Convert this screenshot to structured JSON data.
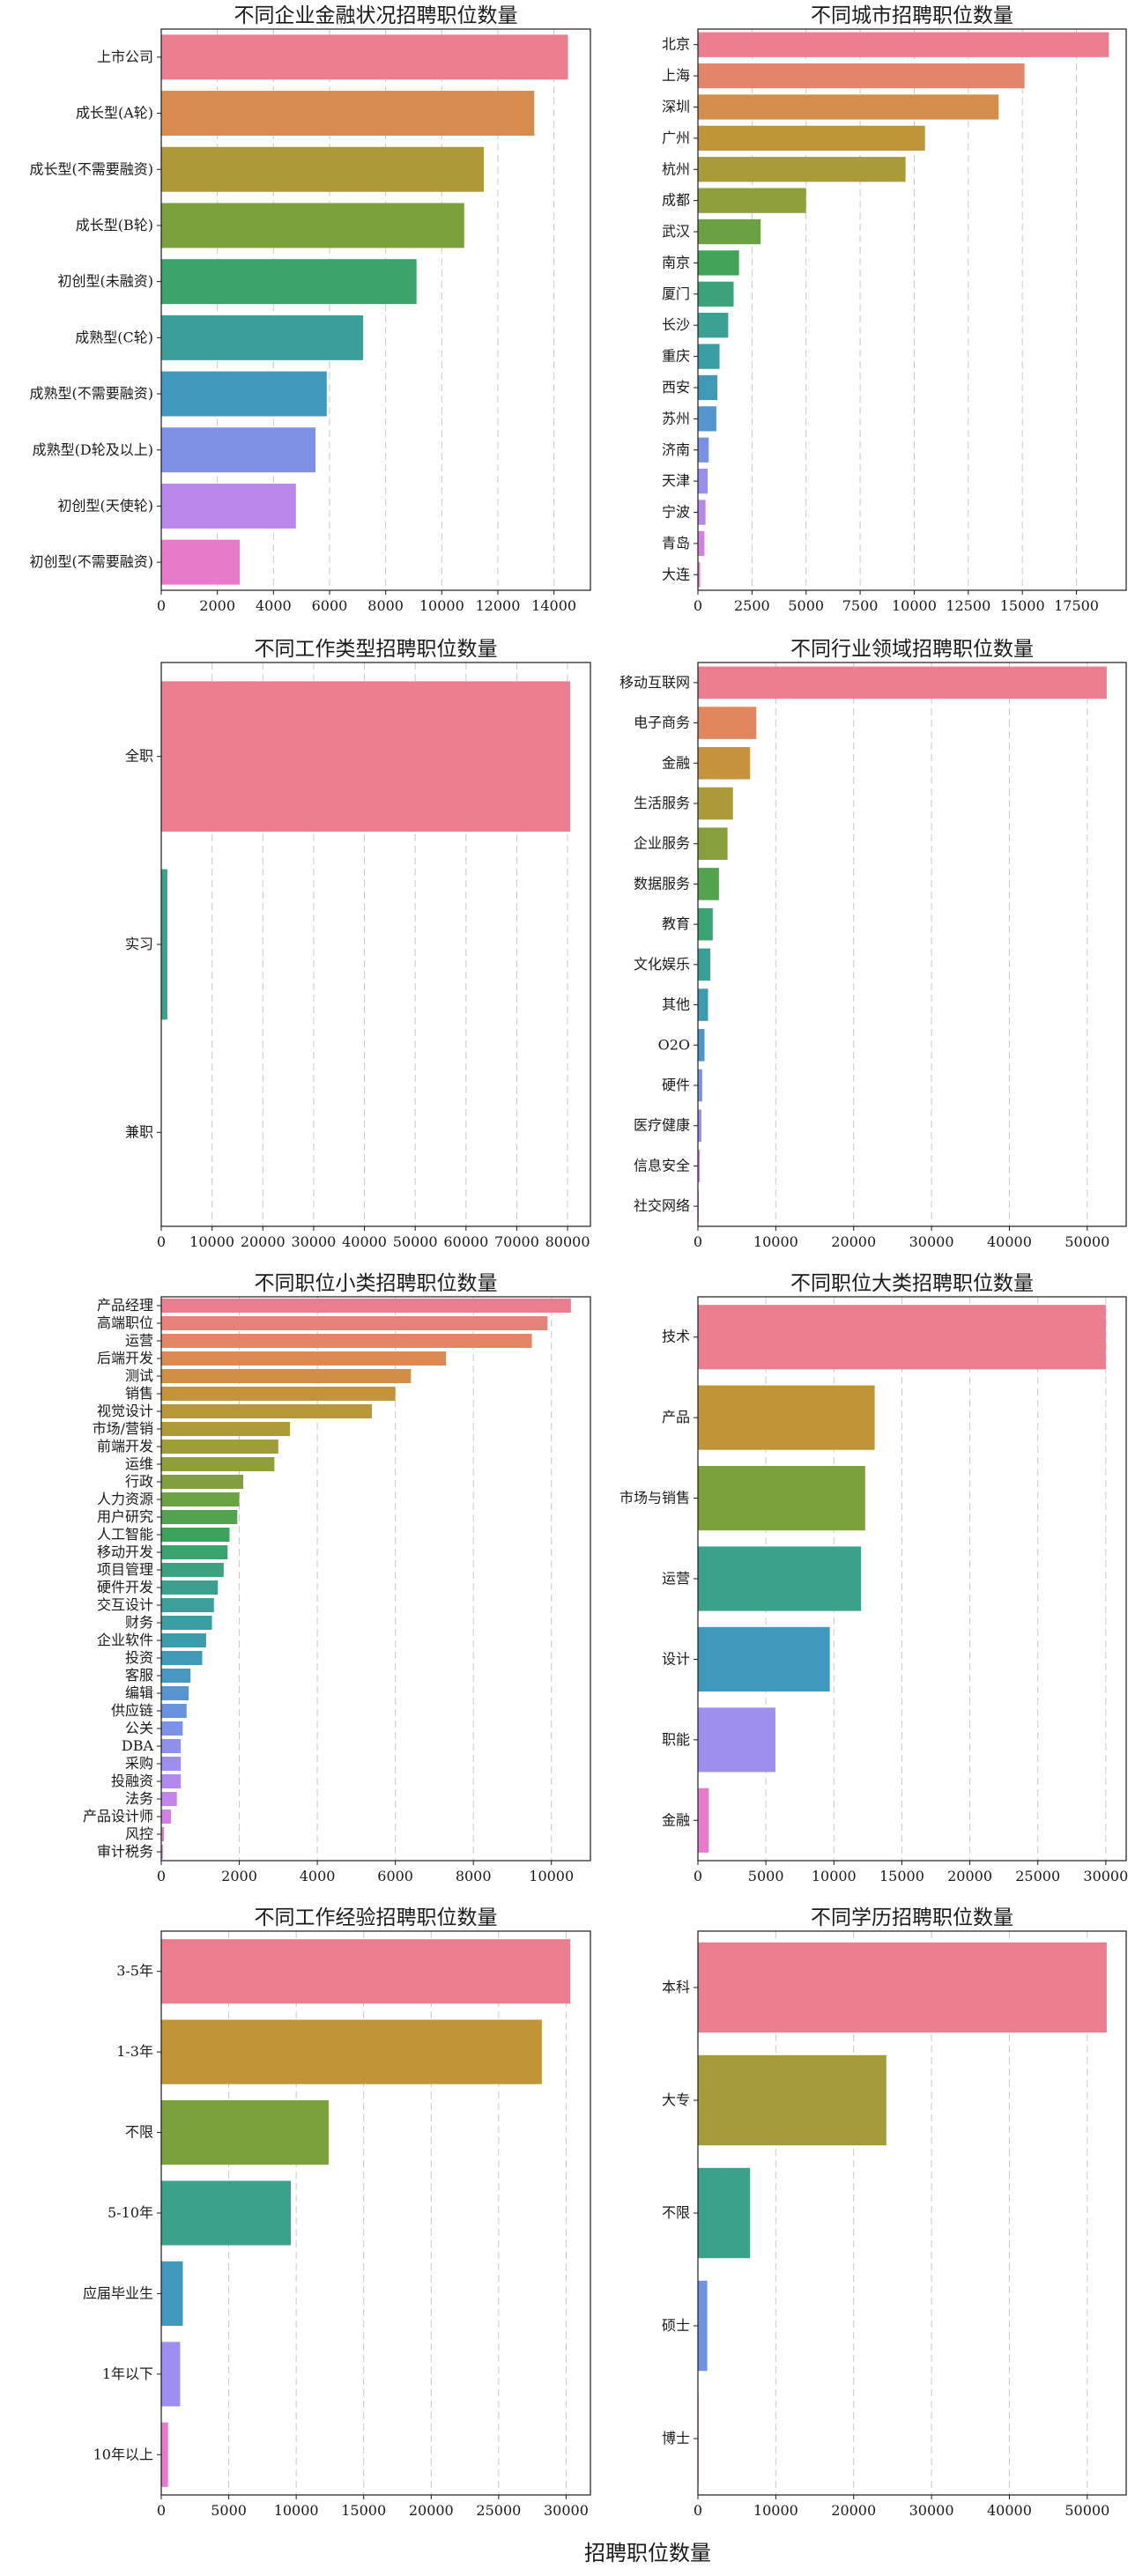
{
  "figure": {
    "xlabel": "招聘职位数量"
  },
  "chart_data": [
    {
      "type": "bar",
      "orientation": "horizontal",
      "title": "不同企业金融状况招聘职位数量",
      "xlabel": "",
      "ylabel": "",
      "xlim": [
        0,
        15300
      ],
      "xticks": [
        0,
        2000,
        4000,
        6000,
        8000,
        10000,
        12000,
        14000
      ],
      "grid": "x-dashed",
      "categories": [
        "上市公司",
        "成长型(A轮)",
        "成长型(不需要融资)",
        "成长型(B轮)",
        "初创型(未融资)",
        "成熟型(C轮)",
        "成熟型(不需要融资)",
        "成熟型(D轮及以上)",
        "初创型(天使轮)",
        "初创型(不需要融资)"
      ],
      "values": [
        14500,
        13300,
        11500,
        10800,
        9100,
        7200,
        5900,
        5500,
        4800,
        2800
      ]
    },
    {
      "type": "bar",
      "orientation": "horizontal",
      "title": "不同城市招聘职位数量",
      "xlabel": "",
      "ylabel": "",
      "xlim": [
        0,
        19800
      ],
      "xticks": [
        0,
        2500,
        5000,
        7500,
        10000,
        12500,
        15000,
        17500
      ],
      "grid": "x-dashed",
      "categories": [
        "北京",
        "上海",
        "深圳",
        "广州",
        "杭州",
        "成都",
        "武汉",
        "南京",
        "厦门",
        "长沙",
        "重庆",
        "西安",
        "苏州",
        "济南",
        "天津",
        "宁波",
        "青岛",
        "大连"
      ],
      "values": [
        19000,
        15100,
        13900,
        10500,
        9600,
        5000,
        2900,
        1900,
        1650,
        1400,
        1000,
        900,
        850,
        500,
        450,
        350,
        300,
        100
      ]
    },
    {
      "type": "bar",
      "orientation": "horizontal",
      "title": "不同工作类型招聘职位数量",
      "xlabel": "",
      "ylabel": "",
      "xlim": [
        0,
        84500
      ],
      "xticks": [
        0,
        10000,
        20000,
        30000,
        40000,
        50000,
        60000,
        70000,
        80000
      ],
      "grid": "x-dashed",
      "categories": [
        "全职",
        "实习",
        "兼职"
      ],
      "values": [
        80500,
        1200,
        60
      ]
    },
    {
      "type": "bar",
      "orientation": "horizontal",
      "title": "不同行业领域招聘职位数量",
      "xlabel": "",
      "ylabel": "",
      "xlim": [
        0,
        55000
      ],
      "xticks": [
        0,
        10000,
        20000,
        30000,
        40000,
        50000
      ],
      "grid": "x-dashed",
      "categories": [
        "移动互联网",
        "电子商务",
        "金融",
        "生活服务",
        "企业服务",
        "数据服务",
        "教育",
        "文化娱乐",
        "其他",
        "O2O",
        "硬件",
        "医疗健康",
        "信息安全",
        "社交网络"
      ],
      "values": [
        52500,
        7500,
        6700,
        4500,
        3800,
        2700,
        1900,
        1600,
        1300,
        850,
        550,
        450,
        250,
        100
      ]
    },
    {
      "type": "bar",
      "orientation": "horizontal",
      "title": "不同职位小类招聘职位数量",
      "xlabel": "",
      "ylabel": "",
      "xlim": [
        0,
        11000
      ],
      "xticks": [
        0,
        2000,
        4000,
        6000,
        8000,
        10000
      ],
      "grid": "x-dashed",
      "categories": [
        "产品经理",
        "高端职位",
        "运营",
        "后端开发",
        "测试",
        "销售",
        "视觉设计",
        "市场/营销",
        "前端开发",
        "运维",
        "行政",
        "人力资源",
        "用户研究",
        "人工智能",
        "移动开发",
        "项目管理",
        "硬件开发",
        "交互设计",
        "财务",
        "企业软件",
        "投资",
        "客服",
        "编辑",
        "供应链",
        "公关",
        "DBA",
        "采购",
        "投融资",
        "法务",
        "产品设计师",
        "风控",
        "审计税务"
      ],
      "values": [
        10500,
        9900,
        9500,
        7300,
        6400,
        6000,
        5400,
        3300,
        3000,
        2900,
        2100,
        2000,
        1950,
        1750,
        1700,
        1600,
        1450,
        1350,
        1300,
        1150,
        1050,
        750,
        700,
        650,
        550,
        500,
        500,
        500,
        400,
        250,
        70,
        40
      ]
    },
    {
      "type": "bar",
      "orientation": "horizontal",
      "title": "不同职位大类招聘职位数量",
      "xlabel": "",
      "ylabel": "",
      "xlim": [
        0,
        31500
      ],
      "xticks": [
        0,
        5000,
        10000,
        15000,
        20000,
        25000,
        30000
      ],
      "grid": "x-dashed",
      "categories": [
        "技术",
        "产品",
        "市场与销售",
        "运营",
        "设计",
        "职能",
        "金融"
      ],
      "values": [
        30000,
        13000,
        12300,
        12000,
        9700,
        5700,
        800
      ]
    },
    {
      "type": "bar",
      "orientation": "horizontal",
      "title": "不同工作经验招聘职位数量",
      "xlabel": "",
      "ylabel": "",
      "xlim": [
        0,
        31800
      ],
      "xticks": [
        0,
        5000,
        10000,
        15000,
        20000,
        25000,
        30000
      ],
      "grid": "x-dashed",
      "categories": [
        "3-5年",
        "1-3年",
        "不限",
        "5-10年",
        "应届毕业生",
        "1年以下",
        "10年以上"
      ],
      "values": [
        30300,
        28200,
        12400,
        9600,
        1600,
        1400,
        500
      ]
    },
    {
      "type": "bar",
      "orientation": "horizontal",
      "title": "不同学历招聘职位数量",
      "xlabel": "",
      "ylabel": "",
      "xlim": [
        0,
        55000
      ],
      "xticks": [
        0,
        10000,
        20000,
        30000,
        40000,
        50000
      ],
      "grid": "x-dashed",
      "categories": [
        "本科",
        "大专",
        "不限",
        "硕士",
        "博士"
      ],
      "values": [
        52500,
        24200,
        6700,
        1200,
        80
      ]
    }
  ]
}
